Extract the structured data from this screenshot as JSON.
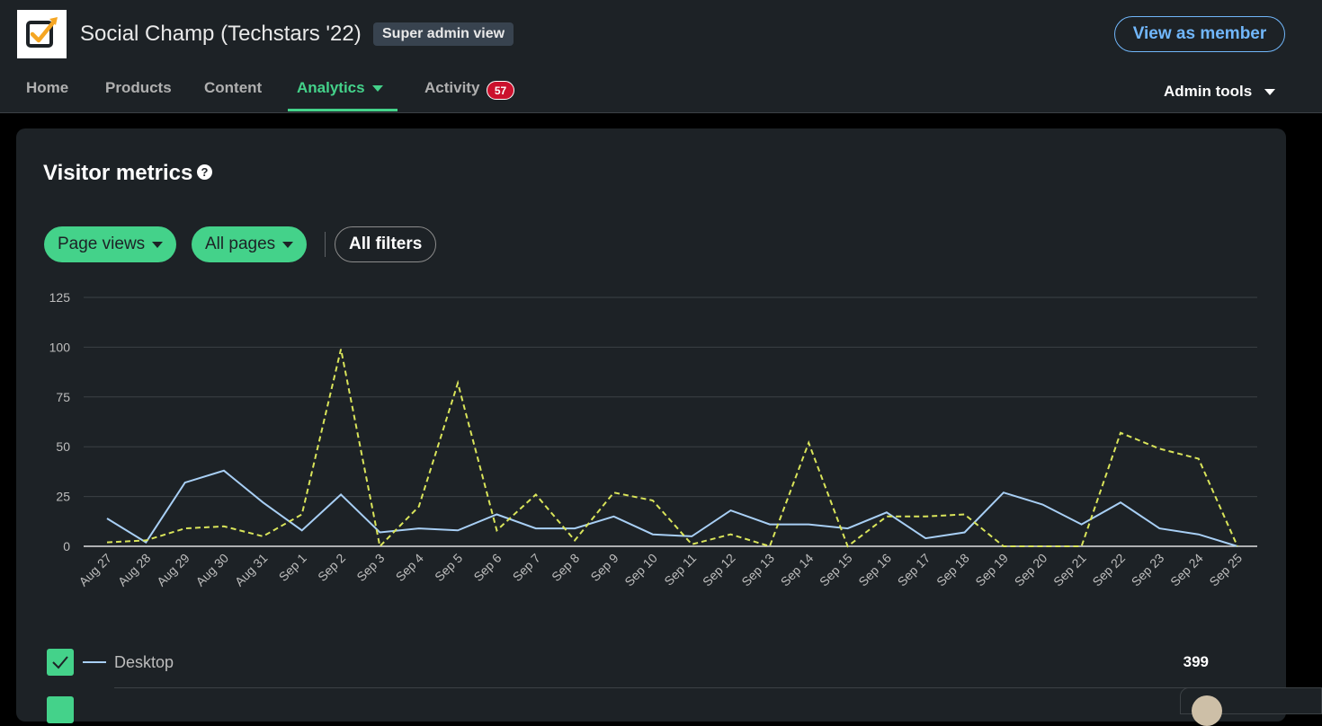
{
  "header": {
    "org_name": "Social Champ (Techstars '22)",
    "admin_badge": "Super admin view",
    "view_as_member": "View as member",
    "admin_tools": "Admin tools",
    "logo_icon": "checkbox-logo-icon"
  },
  "nav": {
    "items": [
      {
        "label": "Home"
      },
      {
        "label": "Products"
      },
      {
        "label": "Content"
      },
      {
        "label": "Analytics"
      },
      {
        "label": "Activity"
      }
    ],
    "active": "Analytics",
    "activity_count": "57"
  },
  "card": {
    "title": "Visitor metrics",
    "help_icon": "?",
    "filters": {
      "metric": "Page views",
      "pages": "All pages",
      "all_filters": "All filters"
    }
  },
  "colors": {
    "accent": "#44d28a",
    "link": "#71b7fb",
    "desktop_series": "#a8cff5",
    "mobile_series": "#d9e45a",
    "badge": "#cb112d"
  },
  "chart_data": {
    "type": "line",
    "x": [
      "Aug 27",
      "Aug 28",
      "Aug 29",
      "Aug 30",
      "Aug 31",
      "Sep 1",
      "Sep 2",
      "Sep 3",
      "Sep 4",
      "Sep 5",
      "Sep 6",
      "Sep 7",
      "Sep 8",
      "Sep 9",
      "Sep 10",
      "Sep 11",
      "Sep 12",
      "Sep 13",
      "Sep 14",
      "Sep 15",
      "Sep 16",
      "Sep 17",
      "Sep 18",
      "Sep 19",
      "Sep 20",
      "Sep 21",
      "Sep 22",
      "Sep 23",
      "Sep 24",
      "Sep 25"
    ],
    "series": [
      {
        "name": "Desktop",
        "style": "solid",
        "values": [
          14,
          2,
          32,
          38,
          22,
          8,
          26,
          7,
          9,
          8,
          16,
          9,
          9,
          15,
          6,
          5,
          18,
          11,
          11,
          9,
          17,
          4,
          7,
          27,
          21,
          11,
          22,
          9,
          6,
          0
        ]
      },
      {
        "name": "",
        "style": "dashed",
        "values": [
          2,
          3,
          9,
          10,
          5,
          16,
          99,
          0,
          20,
          82,
          8,
          26,
          3,
          27,
          23,
          1,
          6,
          0,
          52,
          0,
          15,
          15,
          16,
          0,
          0,
          0,
          57,
          49,
          44,
          0
        ]
      }
    ],
    "yticks": [
      0,
      25,
      50,
      75,
      100,
      125
    ],
    "ylim": [
      0,
      125
    ],
    "grid": true
  },
  "legend": [
    {
      "label": "Desktop",
      "value": "399"
    }
  ]
}
